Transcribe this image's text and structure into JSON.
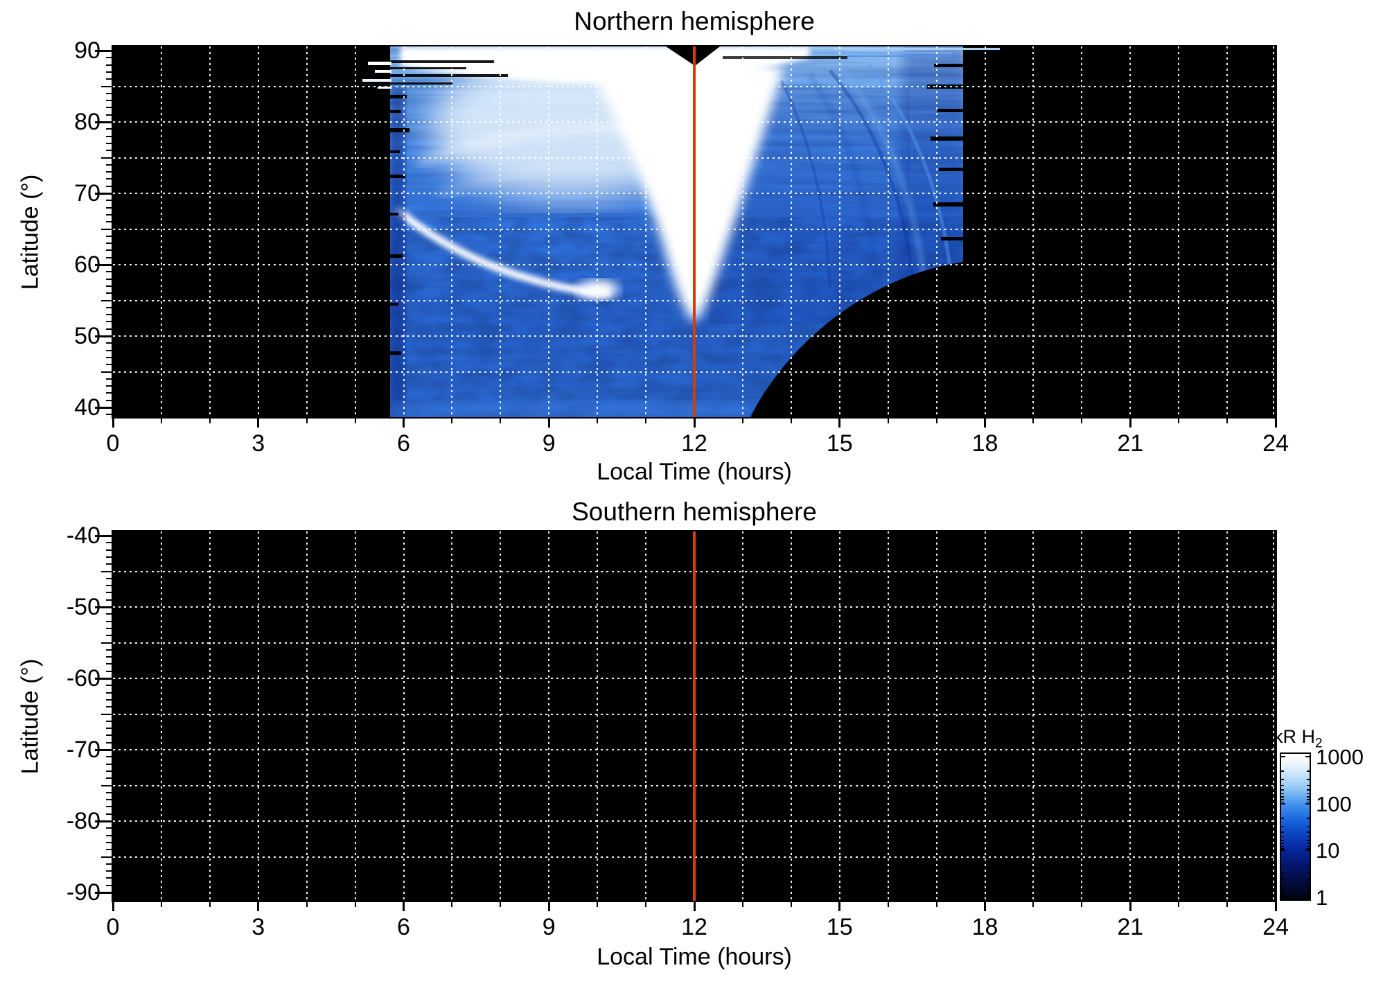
{
  "figure": {
    "panels": [
      {
        "title": "Northern hemisphere",
        "xlabel": "Local Time (hours)",
        "ylabel": "Latitude (°)",
        "x_tick_labels": [
          "0",
          "3",
          "6",
          "9",
          "12",
          "15",
          "18",
          "21",
          "24"
        ],
        "y_tick_labels": [
          "90",
          "80",
          "70",
          "60",
          "50",
          "40"
        ],
        "noon_line_hour": 12
      },
      {
        "title": "Southern hemisphere",
        "xlabel": "Local Time (hours)",
        "ylabel": "Latitude (°)",
        "x_tick_labels": [
          "0",
          "3",
          "6",
          "9",
          "12",
          "15",
          "18",
          "21",
          "24"
        ],
        "y_tick_labels": [
          "-40",
          "-50",
          "-60",
          "-70",
          "-80",
          "-90"
        ],
        "noon_line_hour": 12
      }
    ],
    "colorbar": {
      "title_main": "kR H",
      "title_sub": "2",
      "tick_labels": [
        "1000",
        "100",
        "10",
        "1"
      ]
    },
    "colors": {
      "noon_line": "#d63c05",
      "grid": "#ffffff",
      "panel_background": "#000000",
      "page_background": "#ffffff"
    }
  },
  "chart_data": [
    {
      "type": "heatmap",
      "title": "Northern hemisphere",
      "xlabel": "Local Time (hours)",
      "ylabel": "Latitude (°)",
      "xlim": [
        0,
        24
      ],
      "ylim": [
        40,
        90
      ],
      "xticks": [
        0,
        3,
        6,
        9,
        12,
        15,
        18,
        21,
        24
      ],
      "xticks_minor_step": 1,
      "yticks": [
        40,
        50,
        60,
        70,
        80,
        90
      ],
      "yticks_minor_step": 1,
      "grid": {
        "style": "dotted",
        "color": "white",
        "x_step_hours": 1,
        "y_step_deg": 5
      },
      "annotations": [
        {
          "type": "vline",
          "x": 12,
          "color": "#d63c05",
          "label": "noon meridian"
        }
      ],
      "colorscale": {
        "label": "kR H2",
        "type": "log",
        "min": 1,
        "max": 1000,
        "colors_low_to_high": [
          "#000000",
          "#061c96",
          "#4896ee",
          "#ffffff"
        ]
      },
      "features": [
        "H2 emission observed between ~5.7 h and ~17.5 h local time; black (no data) elsewhere",
        "black gap in lower right bounded by curve from (13.2 h, 40°) to (17.6 h, 60.5°)",
        "saturated white region (~1000 kR) spanning ~6-12.5 h above ~83° latitude",
        "central bright white column ~9-11.5 h reaching down to ~53° latitude",
        "thin bright arc from (5.9 h, 67°) down to (10.1 h, 56°)",
        "moderate 10-100 kR blue emission elsewhere, dimmer and mottled at low latitudes",
        "thin emission streaks near 90° extending to ~18.2 h",
        "small black wedge near (11.4-12.5 h, 87-90°)",
        "ragged dawn-side edge near 5.7-6 h with horizontal streaks"
      ]
    },
    {
      "type": "heatmap",
      "title": "Southern hemisphere",
      "xlabel": "Local Time (hours)",
      "ylabel": "Latitude (°)",
      "xlim": [
        0,
        24
      ],
      "ylim": [
        -90,
        -40
      ],
      "xticks": [
        0,
        3,
        6,
        9,
        12,
        15,
        18,
        21,
        24
      ],
      "xticks_minor_step": 1,
      "yticks": [
        -90,
        -80,
        -70,
        -60,
        -50,
        -40
      ],
      "yticks_minor_step": 1,
      "grid": {
        "style": "dotted",
        "color": "white",
        "x_step_hours": 1,
        "y_step_deg": 5
      },
      "annotations": [
        {
          "type": "vline",
          "x": 12,
          "color": "#d63c05",
          "label": "noon meridian"
        }
      ],
      "values": "no emission detected - entire panel at or below 1 kR (black)"
    }
  ]
}
